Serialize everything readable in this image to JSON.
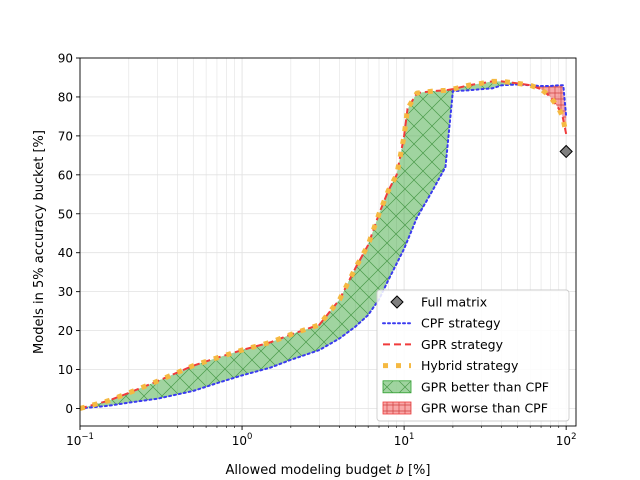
{
  "chart_data": {
    "type": "line",
    "xlabel": "Allowed modeling budget $b$ [%]",
    "xlabel_text": "Allowed modeling budget",
    "xlabel_var": "b",
    "xlabel_unit": "[%]",
    "ylabel": "Models in 5% accuracy bucket [%]",
    "xscale": "log",
    "xlim": [
      0.1,
      115
    ],
    "ylim": [
      -4.5,
      90
    ],
    "grid": true,
    "legend_position": "lower-right",
    "x_ticks": [
      {
        "value": 0.1,
        "base": "10",
        "exp": "−1"
      },
      {
        "value": 1,
        "base": "10",
        "exp": "0"
      },
      {
        "value": 10,
        "base": "10",
        "exp": "1"
      },
      {
        "value": 100,
        "base": "10",
        "exp": "2"
      }
    ],
    "y_ticks": [
      {
        "value": 0,
        "label": "0"
      },
      {
        "value": 10,
        "label": "10"
      },
      {
        "value": 20,
        "label": "20"
      },
      {
        "value": 30,
        "label": "30"
      },
      {
        "value": 40,
        "label": "40"
      },
      {
        "value": 50,
        "label": "50"
      },
      {
        "value": 60,
        "label": "60"
      },
      {
        "value": 70,
        "label": "70"
      },
      {
        "value": 80,
        "label": "80"
      },
      {
        "value": 90,
        "label": "90"
      }
    ],
    "series": [
      {
        "name": "CPF strategy",
        "style": "dotted",
        "color": "#3b3bf0",
        "x": [
          0.1,
          0.15,
          0.2,
          0.3,
          0.5,
          0.7,
          1.0,
          1.5,
          2.0,
          3.0,
          4.0,
          5.0,
          6.0,
          7.0,
          8.0,
          10.0,
          12.0,
          15.0,
          18.0,
          20.0,
          25.0,
          30.0,
          35.0,
          40.0,
          50.0,
          60.0,
          70.0,
          80.0,
          90.0,
          96.0,
          100.0
        ],
        "y": [
          0,
          0.7,
          1.5,
          2.5,
          4.5,
          6.5,
          8.5,
          10.5,
          12.5,
          15,
          18,
          21,
          24,
          28,
          33,
          41,
          49,
          56,
          62,
          81.5,
          81.7,
          82,
          82.2,
          83,
          83.2,
          83,
          82.8,
          82.8,
          83,
          83,
          75
        ]
      },
      {
        "name": "GPR strategy",
        "style": "dashed",
        "color": "#f03b3b",
        "x": [
          0.1,
          0.15,
          0.2,
          0.3,
          0.5,
          0.7,
          1.0,
          1.5,
          2.0,
          3.0,
          4.0,
          5.0,
          6.0,
          7.0,
          8.0,
          9.0,
          10.0,
          10.5,
          12.0,
          15.0,
          18.0,
          20.0,
          25.0,
          30.0,
          35.0,
          40.0,
          50.0,
          60.0,
          70.0,
          75.0,
          80.0,
          90.0,
          95.0,
          100.0
        ],
        "y": [
          0,
          2,
          4,
          7,
          11,
          13,
          15,
          17,
          19,
          21.5,
          28,
          36,
          42,
          50,
          56,
          60,
          70,
          77,
          81,
          81.5,
          81.7,
          82,
          83,
          83.5,
          84,
          84,
          83.5,
          83,
          82,
          81,
          80,
          77,
          75,
          70.5
        ]
      },
      {
        "name": "Hybrid strategy",
        "style": "dotted-thick",
        "color": "#f5b942",
        "x": [
          0.1,
          0.15,
          0.2,
          0.3,
          0.5,
          0.7,
          1.0,
          1.5,
          2.0,
          3.0,
          4.0,
          5.0,
          6.0,
          7.0,
          8.0,
          9.0,
          10.0,
          10.5,
          12.0,
          15.0,
          18.0,
          20.0,
          25.0,
          30.0,
          35.0,
          40.0,
          50.0,
          60.0,
          70.0,
          75.0,
          80.0,
          90.0,
          95.0,
          100.0
        ],
        "y": [
          0,
          2,
          4,
          7,
          11,
          13,
          15,
          17,
          19,
          21.5,
          28,
          36,
          42,
          50,
          56,
          60,
          70,
          77,
          81,
          81.5,
          81.7,
          82,
          83,
          83.5,
          84,
          84,
          83.5,
          83,
          82,
          81,
          80,
          77,
          75,
          70.5
        ]
      }
    ],
    "full_matrix": {
      "name": "Full matrix",
      "x": 100,
      "y": 66
    },
    "fill_legend": [
      {
        "name": "GPR better than CPF",
        "color": "#2ca02c"
      },
      {
        "name": "GPR worse than CPF",
        "color": "#f03b3b"
      }
    ]
  }
}
